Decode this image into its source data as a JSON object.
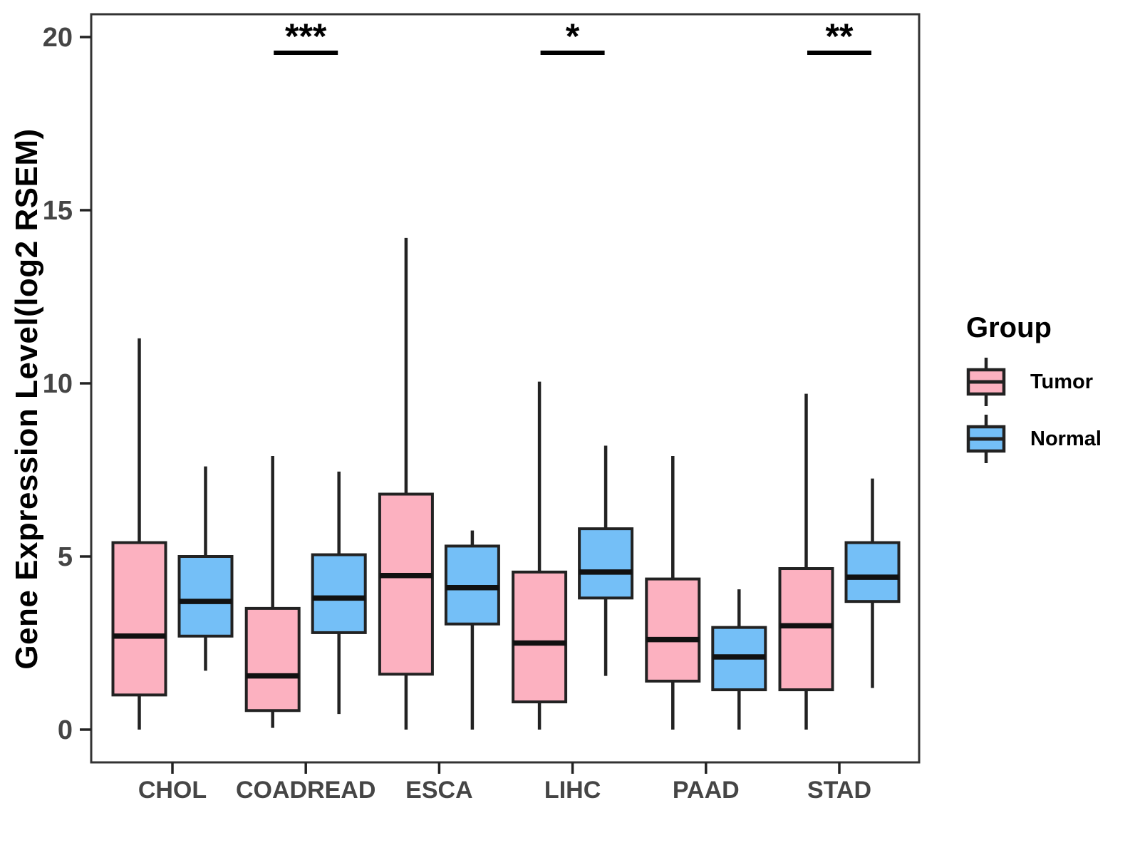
{
  "chart_data": {
    "type": "boxplot",
    "title": "",
    "xlabel": "",
    "ylabel": "Gene Expression Level(log2 RSEM)",
    "ylim": [
      0,
      20
    ],
    "yticks": [
      0,
      5,
      10,
      15,
      20
    ],
    "grid": false,
    "categories": [
      "CHOL",
      "COADREAD",
      "ESCA",
      "LIHC",
      "PAAD",
      "STAD"
    ],
    "legend": {
      "title": "Group",
      "position": "right"
    },
    "colors": {
      "tumor_fill": "#FCB1C0",
      "normal_fill": "#74BFF7",
      "box_stroke": "#222222",
      "median_stroke": "#111111",
      "axis_text": "#454545",
      "panel_border": "#333333"
    },
    "box_stats_order": [
      "min",
      "q1",
      "median",
      "q3",
      "max"
    ],
    "series": [
      {
        "name": "Tumor",
        "color": "#FCB1C0",
        "boxes": [
          [
            0,
            1.0,
            2.7,
            5.4,
            11.3
          ],
          [
            0.05,
            0.55,
            1.55,
            3.5,
            7.9
          ],
          [
            0,
            1.6,
            4.45,
            6.8,
            14.2
          ],
          [
            0,
            0.8,
            2.5,
            4.55,
            10.05
          ],
          [
            0,
            1.4,
            2.6,
            4.35,
            7.9
          ],
          [
            0,
            1.15,
            3.0,
            4.65,
            9.7
          ]
        ]
      },
      {
        "name": "Normal",
        "color": "#74BFF7",
        "boxes": [
          [
            1.7,
            2.7,
            3.7,
            5.0,
            7.6
          ],
          [
            0.45,
            2.8,
            3.8,
            5.05,
            7.45
          ],
          [
            0,
            3.05,
            4.1,
            5.3,
            5.75
          ],
          [
            1.55,
            3.8,
            4.55,
            5.8,
            8.2
          ],
          [
            0,
            1.15,
            2.1,
            2.95,
            4.05
          ],
          [
            1.2,
            3.7,
            4.4,
            5.4,
            7.25
          ]
        ]
      }
    ],
    "significance": [
      {
        "category": "COADREAD",
        "label": "***"
      },
      {
        "category": "LIHC",
        "label": "*"
      },
      {
        "category": "STAD",
        "label": "**"
      }
    ]
  }
}
